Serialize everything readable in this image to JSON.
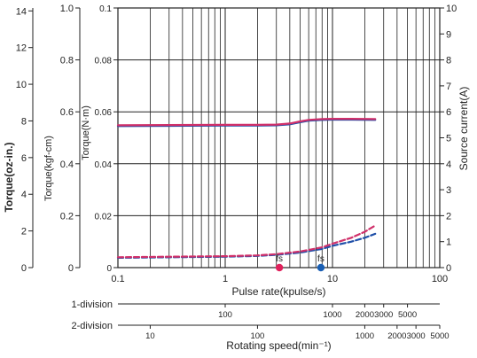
{
  "chart_data": {
    "type": "line",
    "xscale": "log",
    "xlim": [
      0.1,
      100
    ],
    "x_ticks": [
      "0.1",
      "1",
      "10",
      "100"
    ],
    "xlabel": "Pulse rate(kpulse/s)",
    "ylim_torque_nm": [
      0,
      0.1
    ],
    "y_axes": [
      {
        "label": "Torque(oz-in.)",
        "ticks": [
          "0",
          "2",
          "4",
          "6",
          "8",
          "10",
          "12",
          "14"
        ],
        "values": [
          0,
          2,
          4,
          6,
          8,
          10,
          12,
          14
        ],
        "max": 14.16
      },
      {
        "label": "Torque(kgf-cm)",
        "ticks": [
          "0",
          "0.2",
          "0.4",
          "0.6",
          "0.8",
          "1.0"
        ],
        "values": [
          0,
          0.2,
          0.4,
          0.6,
          0.8,
          1.0
        ],
        "max": 1.0
      },
      {
        "label": "Torque(N·m)",
        "ticks": [
          "0",
          "0.02",
          "0.04",
          "0.06",
          "0.08",
          "0.1"
        ],
        "values": [
          0,
          0.02,
          0.04,
          0.06,
          0.08,
          0.1
        ],
        "max": 0.1
      },
      {
        "label": "Source current(A)",
        "ticks": [
          "0",
          "1",
          "2",
          "3",
          "4",
          "5",
          "6",
          "7",
          "8",
          "9",
          "10"
        ],
        "values": [
          0,
          1,
          2,
          3,
          4,
          5,
          6,
          7,
          8,
          9,
          10
        ],
        "max": 10
      }
    ],
    "series": [
      {
        "style": "solid",
        "color": "#1f4fa8",
        "x": [
          0.1,
          0.3,
          1,
          2,
          3,
          4,
          5,
          6,
          8,
          10,
          15,
          25
        ],
        "y_torque_nm": [
          0.0545,
          0.0546,
          0.0547,
          0.0547,
          0.0548,
          0.0552,
          0.056,
          0.0566,
          0.0569,
          0.057,
          0.057,
          0.0569
        ]
      },
      {
        "style": "solid",
        "color": "#d0306a",
        "x": [
          0.1,
          0.3,
          1,
          2,
          3,
          4,
          5,
          6,
          8,
          10,
          15,
          25
        ],
        "y_torque_nm": [
          0.0548,
          0.0549,
          0.055,
          0.055,
          0.0551,
          0.0555,
          0.0563,
          0.0569,
          0.0572,
          0.0573,
          0.0573,
          0.0572
        ]
      },
      {
        "style": "dashed",
        "color": "#1f4fa8",
        "x": [
          0.1,
          0.3,
          1,
          2,
          3,
          5,
          8,
          10,
          15,
          20,
          25
        ],
        "y_current_a": [
          0.38,
          0.4,
          0.42,
          0.45,
          0.49,
          0.58,
          0.72,
          0.84,
          1.0,
          1.15,
          1.3
        ]
      },
      {
        "style": "dashed",
        "color": "#d0306a",
        "x": [
          0.1,
          0.3,
          1,
          2,
          3,
          5,
          8,
          10,
          15,
          20,
          25
        ],
        "y_current_a": [
          0.4,
          0.42,
          0.44,
          0.47,
          0.52,
          0.62,
          0.78,
          0.92,
          1.15,
          1.38,
          1.62
        ]
      }
    ],
    "markers": [
      {
        "label": "fs",
        "x": 3.2,
        "color": "#e0215c"
      },
      {
        "label": "fs",
        "x": 7.8,
        "color": "#1a5fb4"
      }
    ],
    "speed_scales": [
      {
        "label": "1-division",
        "ticks": [
          {
            "label": "100",
            "x": 1
          },
          {
            "label": "1000",
            "x": 10
          },
          {
            "label": "2000",
            "x": 20
          },
          {
            "label": "3000",
            "x": 30
          },
          {
            "label": "5000",
            "x": 50
          }
        ]
      },
      {
        "label": "2-division",
        "ticks": [
          {
            "label": "10",
            "x": 0.2
          },
          {
            "label": "100",
            "x": 2
          },
          {
            "label": "1000",
            "x": 20
          },
          {
            "label": "2000",
            "x": 40
          },
          {
            "label": "3000",
            "x": 60
          },
          {
            "label": "5000",
            "x": 100
          }
        ]
      }
    ],
    "speed_axis_label": "Rotating speed(min⁻¹)",
    "grid": true
  }
}
